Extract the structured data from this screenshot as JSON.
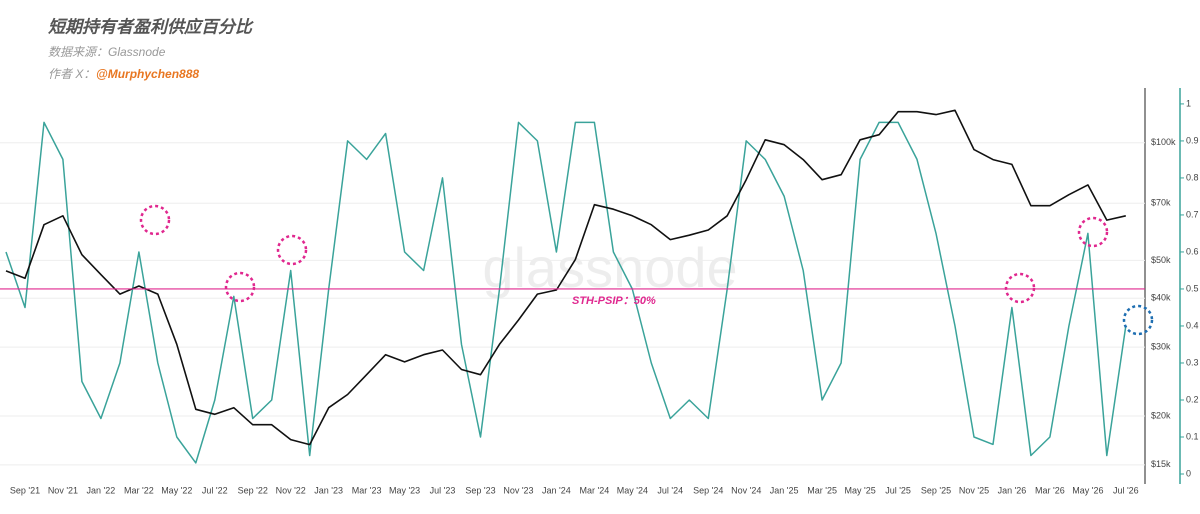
{
  "chart_data": {
    "type": "line",
    "title": "短期持有者盈利供应百分比",
    "source": "数据来源：Glassnode",
    "author_prefix": "作者 X：",
    "author": "@Murphychen888",
    "watermark": "glassnode",
    "categories": [
      null,
      "Sep '21",
      null,
      "Nov '21",
      null,
      "Jan '22",
      null,
      "Mar '22",
      null,
      "May '22",
      null,
      "Jul '22",
      null,
      "Sep '22",
      null,
      "Nov '22",
      null,
      "Jan '23",
      null,
      "Mar '23",
      null,
      "May '23",
      null,
      "Jul '23",
      null,
      "Sep '23",
      null,
      "Nov '23",
      null,
      "Jan '24",
      null,
      "Mar '24",
      null,
      "May '24",
      null,
      "Jul '24",
      null,
      "Sep '24",
      null,
      "Nov '24",
      null,
      "Jan '25",
      null,
      "Mar '25",
      null,
      "May '25",
      null,
      "Jul '25",
      null,
      "Sep '25",
      null,
      "Nov '25",
      null,
      "Jan '26",
      null,
      "Mar '26",
      null,
      "May '26",
      null,
      "Jul '26"
    ],
    "series": [
      {
        "color": "#111111",
        "axis": "y",
        "values": [
          47000,
          45000,
          61700,
          65000,
          51700,
          46000,
          41000,
          43000,
          41000,
          30500,
          20800,
          20200,
          21000,
          19000,
          19000,
          17400,
          16900,
          21000,
          22700,
          25500,
          28700,
          27500,
          28700,
          29500,
          26300,
          25500,
          30500,
          35200,
          41000,
          42000,
          50300,
          69400,
          67600,
          65000,
          61700,
          56500,
          58000,
          59800,
          65000,
          80400,
          101700,
          98800,
          90500,
          80400,
          82800,
          101700,
          104800,
          120000,
          120000,
          118000,
          121000,
          96000,
          90500,
          88000,
          69000,
          69000,
          73600,
          78000,
          63400,
          65000
        ]
      },
      {
        "color": "#3aa39a",
        "axis": "y2",
        "values": [
          0.6,
          0.45,
          0.95,
          0.85,
          0.25,
          0.15,
          0.3,
          0.6,
          0.3,
          0.1,
          0.03,
          0.2,
          0.48,
          0.15,
          0.2,
          0.55,
          0.05,
          0.5,
          0.9,
          0.85,
          0.92,
          0.6,
          0.55,
          0.8,
          0.35,
          0.1,
          0.5,
          0.95,
          0.9,
          0.6,
          0.95,
          0.95,
          0.6,
          0.5,
          0.3,
          0.15,
          0.2,
          0.15,
          0.5,
          0.9,
          0.85,
          0.75,
          0.55,
          0.2,
          0.3,
          0.85,
          0.95,
          0.95,
          0.85,
          0.65,
          0.4,
          0.1,
          0.08,
          0.45,
          0.05,
          0.1,
          0.4,
          0.65,
          0.05,
          0.4
        ]
      }
    ],
    "log_y": true,
    "ylim": [
      13400,
      138000
    ],
    "yticks": [
      {
        "value": 15000,
        "label": "$15k"
      },
      {
        "value": 20000,
        "label": "$20k"
      },
      {
        "value": 30000,
        "label": "$30k"
      },
      {
        "value": 40000,
        "label": "$40k"
      },
      {
        "value": 50000,
        "label": "$50k"
      },
      {
        "value": 70000,
        "label": "$70k"
      },
      {
        "value": 100000,
        "label": "$100k"
      }
    ],
    "y2lim": [
      -0.027,
      1.043
    ],
    "y2ticks": [
      0,
      0.1,
      0.2,
      0.3,
      0.4,
      0.5,
      0.6,
      0.7,
      0.8,
      0.9,
      1
    ],
    "y2_axis_color": "#3aa39a",
    "grid": true,
    "reference_line": {
      "value": 0.5,
      "label": "STH-PSIP：50%",
      "color": "#e0288f"
    }
  }
}
